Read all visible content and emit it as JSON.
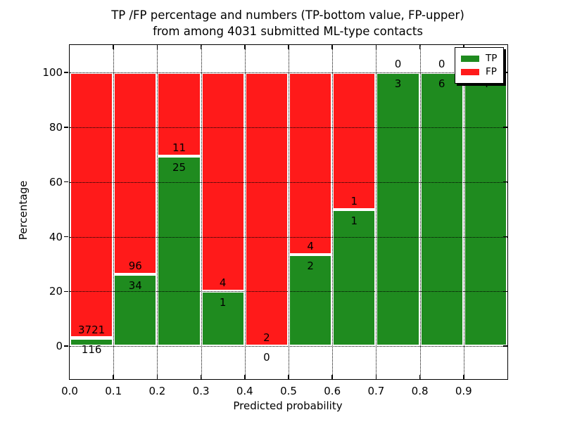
{
  "figure": {
    "title_line1": "TP /FP percentage and numbers (TP-bottom value, FP-upper)",
    "title_line2": "from among 4031 submitted ML-type contacts"
  },
  "chart_data": {
    "type": "bar",
    "stacked": true,
    "normalized_to_percent": true,
    "title": "TP /FP percentage and numbers (TP-bottom value, FP-upper) from among 4031 submitted ML-type contacts",
    "xlabel": "Predicted probability",
    "ylabel": "Percentage",
    "xlim": [
      0.0,
      1.0
    ],
    "ylim": [
      -12,
      110
    ],
    "x_tick_labels": [
      "0.0",
      "0.1",
      "0.2",
      "0.3",
      "0.4",
      "0.5",
      "0.6",
      "0.7",
      "0.8",
      "0.9"
    ],
    "y_tick_values": [
      0,
      20,
      40,
      60,
      80,
      100
    ],
    "grid": "dotted",
    "legend_position": "upper right",
    "total_contacts": 4031,
    "bin_width": 0.1,
    "categories": [
      "0.0-0.1",
      "0.1-0.2",
      "0.2-0.3",
      "0.3-0.4",
      "0.4-0.5",
      "0.5-0.6",
      "0.6-0.7",
      "0.7-0.8",
      "0.8-0.9",
      "0.9-1.0"
    ],
    "series": [
      {
        "name": "TP",
        "color": "#1f8b1f",
        "values": [
          116,
          34,
          25,
          1,
          0,
          2,
          1,
          3,
          6,
          4
        ]
      },
      {
        "name": "FP",
        "color": "#ff1a1a",
        "values": [
          3721,
          96,
          11,
          4,
          2,
          4,
          1,
          0,
          0,
          0
        ]
      }
    ],
    "tp_percent_of_bin": [
      3.0,
      26.2,
      69.4,
      20.0,
      0.0,
      33.3,
      50.0,
      100.0,
      100.0,
      100.0
    ]
  },
  "colors": {
    "tp": "#1f8b1f",
    "fp": "#ff1a1a",
    "background": "#ffffff",
    "text": "#000000",
    "bar_edge": "#ffffff"
  }
}
